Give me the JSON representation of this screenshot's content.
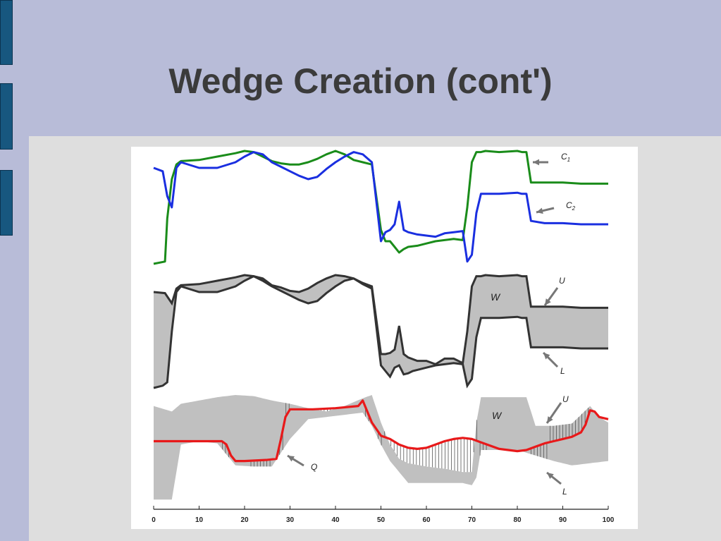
{
  "slide": {
    "title": "Wedge Creation (cont')"
  },
  "colors": {
    "background": "#b8bcd8",
    "content_background": "#dedede",
    "title": "#3b3b3b",
    "side_tab": "#17577f",
    "c1": "#1a8c1a",
    "c2": "#1a2fe0",
    "q": "#e8191a",
    "wedge": "#c0c0c0",
    "outline": "#333333"
  },
  "chart_data": {
    "type": "line",
    "xlim": [
      0,
      100
    ],
    "x_ticks": [
      0,
      10,
      20,
      30,
      40,
      50,
      60,
      70,
      80,
      90,
      100
    ],
    "panels": [
      {
        "name": "top",
        "series": [
          {
            "name": "C1",
            "color": "#1a8c1a",
            "x": [
              0,
              2.5,
              3,
              4,
              5,
              6,
              10,
              14,
              18,
              20,
              22,
              24,
              26,
              28,
              30,
              32,
              34,
              36,
              38,
              40,
              42,
              44,
              46,
              48,
              50,
              51,
              52,
              53,
              54,
              55,
              56,
              58,
              60,
              62,
              64,
              66,
              68,
              69,
              70,
              71,
              72,
              73,
              76,
              80,
              81,
              82,
              83,
              86,
              90,
              94,
              97,
              100
            ],
            "y": [
              0.0,
              0.02,
              0.4,
              0.75,
              0.88,
              0.91,
              0.92,
              0.95,
              0.98,
              1.0,
              0.99,
              0.95,
              0.91,
              0.89,
              0.88,
              0.88,
              0.9,
              0.93,
              0.97,
              1.0,
              0.97,
              0.92,
              0.9,
              0.88,
              0.3,
              0.2,
              0.2,
              0.15,
              0.1,
              0.13,
              0.15,
              0.16,
              0.18,
              0.2,
              0.21,
              0.22,
              0.21,
              0.5,
              0.9,
              0.99,
              0.99,
              1.0,
              0.99,
              1.0,
              0.99,
              0.99,
              0.72,
              0.72,
              0.72,
              0.71,
              0.71,
              0.71
            ]
          },
          {
            "name": "C2",
            "color": "#1a2fe0",
            "x": [
              0,
              2,
              3,
              4,
              5,
              6,
              10,
              14,
              18,
              20,
              22,
              24,
              26,
              28,
              30,
              32,
              34,
              36,
              38,
              40,
              42,
              44,
              46,
              48,
              50,
              51,
              52,
              53,
              54,
              55,
              56,
              57,
              58,
              60,
              62,
              64,
              66,
              68,
              69,
              70,
              71,
              72,
              76,
              80,
              81,
              82,
              83,
              86,
              90,
              94,
              97,
              100
            ],
            "y": [
              0.85,
              0.82,
              0.6,
              0.5,
              0.85,
              0.9,
              0.85,
              0.85,
              0.9,
              0.95,
              0.99,
              0.97,
              0.9,
              0.86,
              0.82,
              0.78,
              0.75,
              0.77,
              0.84,
              0.9,
              0.95,
              0.99,
              0.97,
              0.9,
              0.2,
              0.28,
              0.3,
              0.35,
              0.55,
              0.3,
              0.28,
              0.27,
              0.26,
              0.25,
              0.24,
              0.27,
              0.28,
              0.29,
              0.02,
              0.08,
              0.45,
              0.62,
              0.62,
              0.63,
              0.62,
              0.62,
              0.38,
              0.36,
              0.36,
              0.35,
              0.35,
              0.35
            ]
          }
        ],
        "annotations": [
          {
            "label": "C",
            "sub": "1"
          },
          {
            "label": "C",
            "sub": "2"
          }
        ]
      },
      {
        "name": "middle",
        "series": [
          {
            "name": "U",
            "x": [
              0,
              2.5,
              4,
              5,
              6,
              10,
              14,
              18,
              20,
              22,
              24,
              26,
              28,
              30,
              32,
              34,
              36,
              38,
              40,
              42,
              44,
              46,
              48,
              50,
              51,
              52,
              53,
              54,
              55,
              56,
              58,
              60,
              62,
              64,
              66,
              68,
              69,
              70,
              71,
              72,
              73,
              76,
              80,
              81,
              82,
              83,
              86,
              90,
              94,
              97,
              100
            ],
            "y": [
              0.85,
              0.84,
              0.75,
              0.88,
              0.91,
              0.92,
              0.95,
              0.98,
              1.0,
              0.99,
              0.97,
              0.91,
              0.89,
              0.86,
              0.85,
              0.88,
              0.93,
              0.97,
              1.0,
              0.99,
              0.97,
              0.93,
              0.9,
              0.3,
              0.3,
              0.31,
              0.34,
              0.55,
              0.3,
              0.27,
              0.24,
              0.24,
              0.21,
              0.26,
              0.26,
              0.22,
              0.5,
              0.9,
              0.99,
              0.99,
              1.0,
              0.99,
              1.0,
              0.99,
              0.99,
              0.72,
              0.72,
              0.72,
              0.71,
              0.71,
              0.71
            ]
          },
          {
            "name": "L",
            "x": [
              0,
              2,
              3,
              4,
              5,
              6,
              10,
              14,
              18,
              20,
              22,
              24,
              26,
              28,
              30,
              32,
              34,
              36,
              38,
              40,
              42,
              44,
              46,
              48,
              50,
              51,
              52,
              53,
              54,
              55,
              56,
              57,
              58,
              60,
              62,
              64,
              66,
              68,
              69,
              70,
              71,
              72,
              76,
              80,
              81,
              82,
              83,
              86,
              90,
              94,
              97,
              100
            ],
            "y": [
              0.0,
              0.02,
              0.05,
              0.5,
              0.85,
              0.9,
              0.85,
              0.85,
              0.9,
              0.95,
              0.99,
              0.95,
              0.9,
              0.86,
              0.82,
              0.78,
              0.75,
              0.77,
              0.84,
              0.9,
              0.95,
              0.97,
              0.92,
              0.88,
              0.2,
              0.15,
              0.1,
              0.18,
              0.2,
              0.12,
              0.13,
              0.15,
              0.16,
              0.18,
              0.2,
              0.21,
              0.22,
              0.21,
              0.02,
              0.08,
              0.45,
              0.62,
              0.62,
              0.63,
              0.62,
              0.62,
              0.36,
              0.36,
              0.36,
              0.35,
              0.35,
              0.35
            ]
          }
        ],
        "annotations": [
          {
            "label": "W"
          },
          {
            "label": "U"
          },
          {
            "label": "L"
          }
        ]
      },
      {
        "name": "bottom",
        "series": [
          {
            "name": "U",
            "x": [
              0,
              4,
              6,
              10,
              14,
              18,
              22,
              26,
              30,
              34,
              38,
              42,
              46,
              48,
              50,
              52,
              54,
              56,
              60,
              64,
              68,
              70,
              71,
              72,
              76,
              80,
              82,
              84,
              88,
              92,
              94,
              96,
              98,
              100
            ],
            "y": [
              0.9,
              0.85,
              0.92,
              0.95,
              0.98,
              1.0,
              0.99,
              0.95,
              0.92,
              0.88,
              0.85,
              0.9,
              0.97,
              1.0,
              0.75,
              0.55,
              0.42,
              0.38,
              0.35,
              0.33,
              0.3,
              0.3,
              0.75,
              0.98,
              0.98,
              0.98,
              0.98,
              0.72,
              0.72,
              0.74,
              0.82,
              0.9,
              0.8,
              0.75
            ]
          },
          {
            "name": "L",
            "x": [
              0,
              4,
              6,
              10,
              14,
              18,
              22,
              26,
              30,
              34,
              38,
              42,
              46,
              48,
              50,
              52,
              54,
              56,
              60,
              64,
              68,
              70,
              71,
              72,
              76,
              80,
              84,
              88,
              92,
              96,
              100
            ],
            "y": [
              0.05,
              0.05,
              0.55,
              0.58,
              0.56,
              0.36,
              0.35,
              0.35,
              0.6,
              0.78,
              0.8,
              0.82,
              0.84,
              0.72,
              0.55,
              0.4,
              0.3,
              0.2,
              0.2,
              0.2,
              0.2,
              0.18,
              0.25,
              0.5,
              0.5,
              0.5,
              0.45,
              0.4,
              0.36,
              0.38,
              0.4
            ]
          },
          {
            "name": "Q",
            "color": "#e8191a",
            "x": [
              0,
              5,
              10,
              15,
              16,
              17,
              18,
              20,
              25,
              27,
              28,
              29,
              30,
              35,
              40,
              45,
              46,
              47,
              48,
              50,
              52,
              54,
              56,
              58,
              60,
              62,
              64,
              66,
              68,
              70,
              72,
              74,
              76,
              78,
              80,
              82,
              84,
              86,
              88,
              90,
              92,
              94,
              95,
              96,
              97,
              98,
              100
            ],
            "y": [
              0.58,
              0.58,
              0.58,
              0.58,
              0.55,
              0.45,
              0.4,
              0.4,
              0.41,
              0.42,
              0.6,
              0.8,
              0.87,
              0.87,
              0.88,
              0.9,
              0.95,
              0.85,
              0.75,
              0.63,
              0.6,
              0.55,
              0.52,
              0.51,
              0.52,
              0.55,
              0.58,
              0.6,
              0.61,
              0.6,
              0.57,
              0.54,
              0.51,
              0.5,
              0.49,
              0.5,
              0.53,
              0.56,
              0.58,
              0.6,
              0.62,
              0.66,
              0.73,
              0.86,
              0.85,
              0.8,
              0.78
            ]
          }
        ],
        "annotations": [
          {
            "label": "W"
          },
          {
            "label": "U"
          },
          {
            "label": "Q"
          },
          {
            "label": "L"
          }
        ]
      }
    ]
  }
}
